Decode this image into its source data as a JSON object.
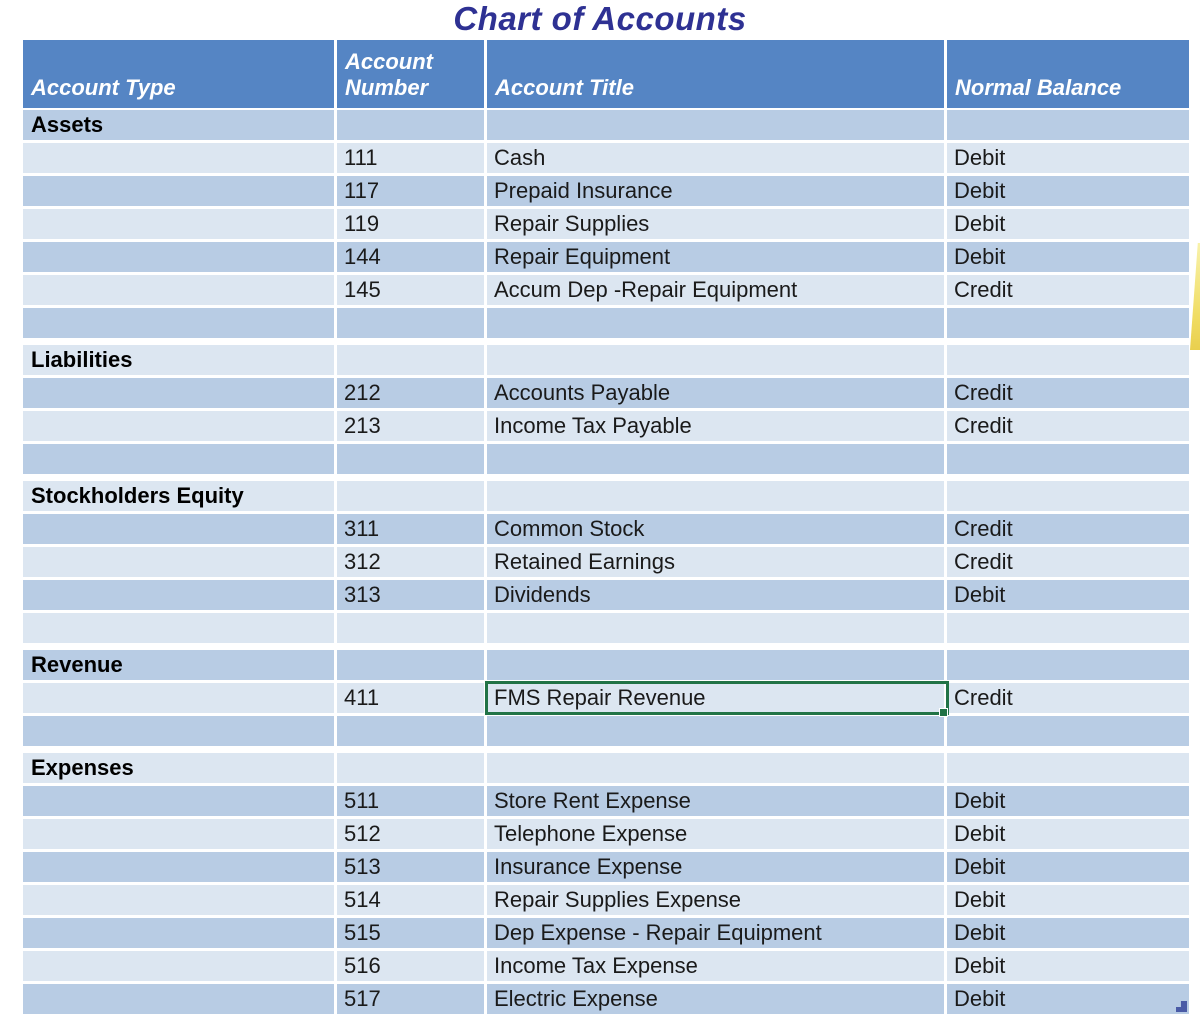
{
  "title": "Chart of Accounts",
  "colors": {
    "title_text": "#2E3193",
    "header_bg": "#5585C4",
    "band_medium": "#B8CCE4",
    "band_light": "#DCE6F1",
    "selection_border": "#217346",
    "handle_blue": "#4A5BA6",
    "accent_yellow": "#EED34F"
  },
  "columns": [
    "Account Type",
    "Account Number",
    "Account Title",
    "Normal Balance"
  ],
  "rows": [
    {
      "kind": "section",
      "label": "Assets"
    },
    {
      "kind": "account",
      "number": "111",
      "title": "Cash",
      "balance": "Debit"
    },
    {
      "kind": "account",
      "number": "117",
      "title": "Prepaid Insurance",
      "balance": "Debit"
    },
    {
      "kind": "account",
      "number": "119",
      "title": "Repair Supplies",
      "balance": "Debit"
    },
    {
      "kind": "account",
      "number": "144",
      "title": "Repair Equipment",
      "balance": "Debit"
    },
    {
      "kind": "account",
      "number": "145",
      "title": "Accum Dep -Repair Equipment",
      "balance": "Credit"
    },
    {
      "kind": "blank"
    },
    {
      "kind": "section",
      "label": "Liabilities"
    },
    {
      "kind": "account",
      "number": "212",
      "title": "Accounts Payable",
      "balance": "Credit"
    },
    {
      "kind": "account",
      "number": "213",
      "title": "Income Tax Payable",
      "balance": "Credit"
    },
    {
      "kind": "blank"
    },
    {
      "kind": "section",
      "label": "Stockholders Equity"
    },
    {
      "kind": "account",
      "number": "311",
      "title": "Common Stock",
      "balance": "Credit"
    },
    {
      "kind": "account",
      "number": "312",
      "title": "Retained Earnings",
      "balance": "Credit"
    },
    {
      "kind": "account",
      "number": "313",
      "title": "Dividends",
      "balance": "Debit"
    },
    {
      "kind": "blank"
    },
    {
      "kind": "section",
      "label": "Revenue"
    },
    {
      "kind": "account",
      "number": "411",
      "title": "FMS Repair Revenue",
      "balance": "Credit",
      "selected": true
    },
    {
      "kind": "blank"
    },
    {
      "kind": "section",
      "label": "Expenses"
    },
    {
      "kind": "account",
      "number": "511",
      "title": "Store Rent Expense",
      "balance": "Debit"
    },
    {
      "kind": "account",
      "number": "512",
      "title": "Telephone Expense",
      "balance": "Debit"
    },
    {
      "kind": "account",
      "number": "513",
      "title": "Insurance Expense",
      "balance": "Debit"
    },
    {
      "kind": "account",
      "number": "514",
      "title": "Repair Supplies Expense",
      "balance": "Debit"
    },
    {
      "kind": "account",
      "number": "515",
      "title": "Dep Expense - Repair Equipment",
      "balance": "Debit"
    },
    {
      "kind": "account",
      "number": "516",
      "title": "Income Tax Expense",
      "balance": "Debit"
    },
    {
      "kind": "account",
      "number": "517",
      "title": "Electric Expense",
      "balance": "Debit"
    }
  ],
  "selection": {
    "account_number": "411",
    "selected_cell_text": "FMS Repair Revenue"
  }
}
